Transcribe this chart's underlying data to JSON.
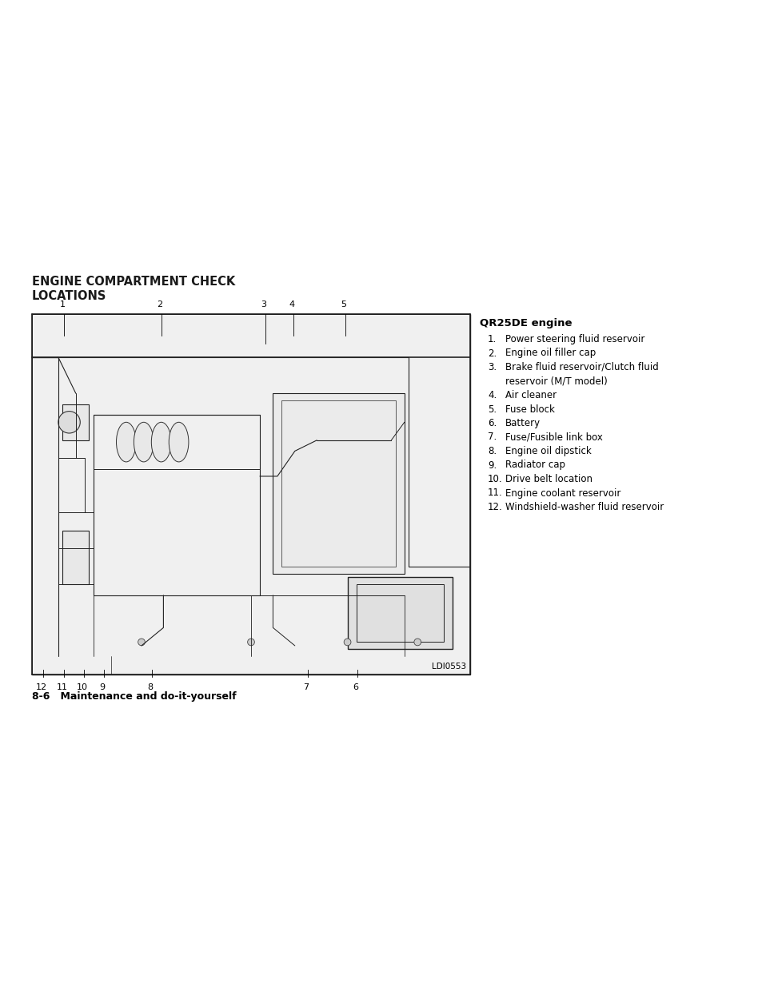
{
  "page_bg": "#ffffff",
  "title_line1": "ENGINE COMPARTMENT CHECK",
  "title_line2": "LOCATIONS",
  "engine_heading": "QR25DE engine",
  "list_items": [
    [
      "1.",
      "Power steering fluid reservoir"
    ],
    [
      "2.",
      "Engine oil filler cap"
    ],
    [
      "3.",
      "Brake fluid reservoir/Clutch fluid"
    ],
    [
      "",
      "reservoir (M/T model)"
    ],
    [
      "4.",
      "Air cleaner"
    ],
    [
      "5.",
      "Fuse block"
    ],
    [
      "6.",
      "Battery"
    ],
    [
      "7.",
      "Fuse/Fusible link box"
    ],
    [
      "8.",
      "Engine oil dipstick"
    ],
    [
      "9.",
      "Radiator cap"
    ],
    [
      "10.",
      "Drive belt location"
    ],
    [
      "11.",
      "Engine coolant reservoir"
    ],
    [
      "12.",
      "Windshield-washer fluid reservoir"
    ]
  ],
  "footer_text": "8-6   Maintenance and do-it-yourself",
  "ldi_text": "LDI0553",
  "top_labels": [
    "1",
    "2",
    "3",
    "4",
    "5"
  ],
  "bottom_labels": [
    "12",
    "11",
    "10",
    "9",
    "8",
    "7",
    "6"
  ]
}
